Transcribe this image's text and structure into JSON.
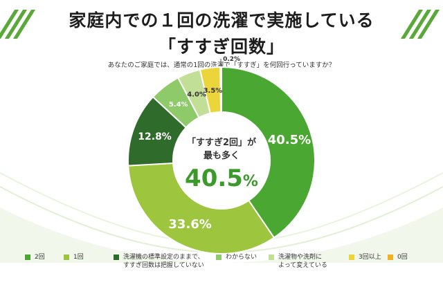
{
  "title_line1": "家庭内での１回の洗濯で実施している",
  "title_line2": "「すすぎ回数」",
  "question": "あなたのご家庭では、通常の1回の洗濯で「すすぎ」を何回行っていますか？",
  "center": {
    "line1": "「すすぎ2回」が",
    "line2": "最も多く",
    "value": "40.5",
    "unit": "%"
  },
  "colors": {
    "stripe": "#5aa83a",
    "center_value": "#3b9a2a"
  },
  "chart_data": {
    "type": "pie",
    "subtype": "donut",
    "title": "家庭内での１回の洗濯で実施している「すすぎ回数」",
    "unit": "%",
    "slices": [
      {
        "label": "2回",
        "value": 40.5,
        "display": "40.5%",
        "color": "#4aa832"
      },
      {
        "label": "1回",
        "value": 33.6,
        "display": "33.6%",
        "color": "#9dc53d"
      },
      {
        "label": "洗濯機の標準設定のままで、\nすすぎ回数は把握していない",
        "value": 12.8,
        "display": "12.8%",
        "color": "#2f6b2a"
      },
      {
        "label": "わからない",
        "value": 5.4,
        "display": "5.4%",
        "color": "#8fca6a"
      },
      {
        "label": "洗濯物や洗剤に\nよって変えている",
        "value": 4.0,
        "display": "4.0%",
        "color": "#c2df98"
      },
      {
        "label": "3回以上",
        "value": 3.5,
        "display": "3.5%",
        "color": "#ecd53a"
      },
      {
        "label": "0回",
        "value": 0.2,
        "display": "0.2%",
        "color": "#f0b21e"
      }
    ],
    "start_angle_deg": 0,
    "direction": "clockwise",
    "legend_position": "bottom"
  }
}
